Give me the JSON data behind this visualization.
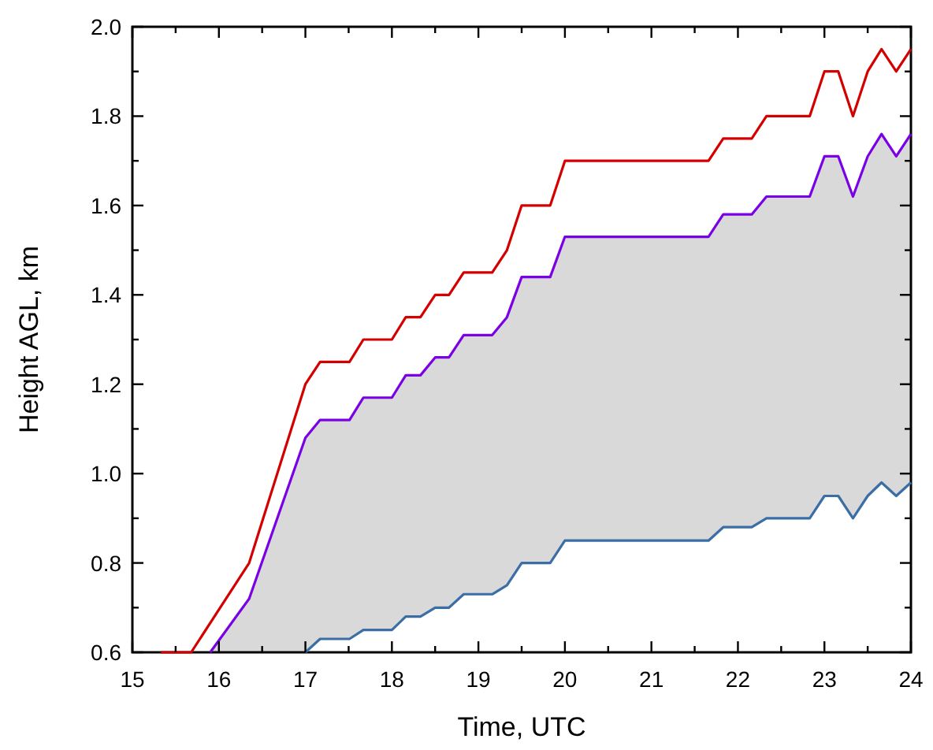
{
  "chart_data": {
    "type": "line",
    "xlabel": "Time, UTC",
    "ylabel": "Height AGL, km",
    "xlim": [
      15,
      24
    ],
    "ylim": [
      0.6,
      2.0
    ],
    "xticks": [
      15,
      {
        "value": 15.5,
        "label": null
      },
      16,
      {
        "value": 16.5,
        "label": null
      },
      17,
      {
        "value": 17.5,
        "label": null
      },
      18,
      {
        "value": 18.5,
        "label": null
      },
      19,
      {
        "value": 19.5,
        "label": null
      },
      20,
      {
        "value": 20.5,
        "label": null
      },
      21,
      {
        "value": 21.5,
        "label": null
      },
      22,
      {
        "value": 22.5,
        "label": null
      },
      23,
      {
        "value": 23.5,
        "label": null
      },
      24
    ],
    "yticks": [
      {
        "value": 0.6,
        "label": "0.6"
      },
      {
        "value": 0.7,
        "label": null
      },
      {
        "value": 0.8,
        "label": "0.8"
      },
      {
        "value": 0.9,
        "label": null
      },
      {
        "value": 1.0,
        "label": "1.0"
      },
      {
        "value": 1.1,
        "label": null
      },
      {
        "value": 1.2,
        "label": "1.2"
      },
      {
        "value": 1.3,
        "label": null
      },
      {
        "value": 1.4,
        "label": "1.4"
      },
      {
        "value": 1.5,
        "label": null
      },
      {
        "value": 1.6,
        "label": "1.6"
      },
      {
        "value": 1.7,
        "label": null
      },
      {
        "value": 1.8,
        "label": "1.8"
      },
      {
        "value": 1.9,
        "label": null
      },
      {
        "value": 2.0,
        "label": "2.0"
      }
    ],
    "grid": false,
    "marker": "none",
    "line_style": "solid",
    "series": [
      {
        "color": "#d40000",
        "x": [
          15.33,
          15.68,
          16.35,
          17.0,
          17.17,
          17.51,
          17.67,
          18.0,
          18.16,
          18.33,
          18.5,
          18.66,
          18.83,
          19.16,
          19.33,
          19.5,
          19.83,
          20.0,
          21.66,
          21.83,
          22.16,
          22.33,
          22.83,
          23.0,
          23.16,
          23.33,
          23.5,
          23.66,
          23.83,
          24.0
        ],
        "values": [
          0.6,
          0.6,
          0.8,
          1.2,
          1.25,
          1.25,
          1.3,
          1.3,
          1.35,
          1.35,
          1.4,
          1.4,
          1.45,
          1.45,
          1.5,
          1.6,
          1.6,
          1.7,
          1.7,
          1.75,
          1.75,
          1.8,
          1.8,
          1.9,
          1.9,
          1.8,
          1.9,
          1.95,
          1.9,
          1.95
        ]
      },
      {
        "color": "#7a00e6",
        "x": [
          15.9,
          16.35,
          17.0,
          17.17,
          17.51,
          17.67,
          18.0,
          18.16,
          18.33,
          18.5,
          18.66,
          18.83,
          19.16,
          19.33,
          19.5,
          19.83,
          20.0,
          21.66,
          21.83,
          22.16,
          22.33,
          22.83,
          23.0,
          23.16,
          23.33,
          23.5,
          23.66,
          23.83,
          24.0
        ],
        "values": [
          0.6,
          0.72,
          1.08,
          1.12,
          1.12,
          1.17,
          1.17,
          1.22,
          1.22,
          1.26,
          1.26,
          1.31,
          1.31,
          1.35,
          1.44,
          1.44,
          1.53,
          1.53,
          1.58,
          1.58,
          1.62,
          1.62,
          1.71,
          1.71,
          1.62,
          1.71,
          1.76,
          1.71,
          1.76
        ],
        "lower": [
          0.6,
          0.6,
          0.6,
          0.63,
          0.63,
          0.65,
          0.65,
          0.68,
          0.68,
          0.7,
          0.7,
          0.73,
          0.73,
          0.75,
          0.8,
          0.8,
          0.85,
          0.85,
          0.88,
          0.88,
          0.9,
          0.9,
          0.95,
          0.95,
          0.9,
          0.95,
          0.98,
          0.95,
          0.98
        ],
        "upper": [
          0.6,
          0.72,
          1.08,
          1.12,
          1.12,
          1.17,
          1.17,
          1.22,
          1.22,
          1.26,
          1.26,
          1.31,
          1.31,
          1.35,
          1.44,
          1.44,
          1.53,
          1.53,
          1.58,
          1.58,
          1.62,
          1.62,
          1.71,
          1.71,
          1.62,
          1.71,
          1.76,
          1.71,
          1.76
        ]
      },
      {
        "color": "#3a6ea5",
        "x": [
          17.0,
          17.17,
          17.51,
          17.67,
          18.0,
          18.16,
          18.33,
          18.5,
          18.66,
          18.83,
          19.16,
          19.33,
          19.5,
          19.83,
          20.0,
          21.66,
          21.83,
          22.16,
          22.33,
          22.83,
          23.0,
          23.16,
          23.33,
          23.5,
          23.66,
          23.83,
          24.0
        ],
        "values": [
          0.6,
          0.63,
          0.63,
          0.65,
          0.65,
          0.68,
          0.68,
          0.7,
          0.7,
          0.73,
          0.73,
          0.75,
          0.8,
          0.8,
          0.85,
          0.85,
          0.88,
          0.88,
          0.9,
          0.9,
          0.95,
          0.95,
          0.9,
          0.95,
          0.98,
          0.95,
          0.98
        ]
      }
    ]
  }
}
